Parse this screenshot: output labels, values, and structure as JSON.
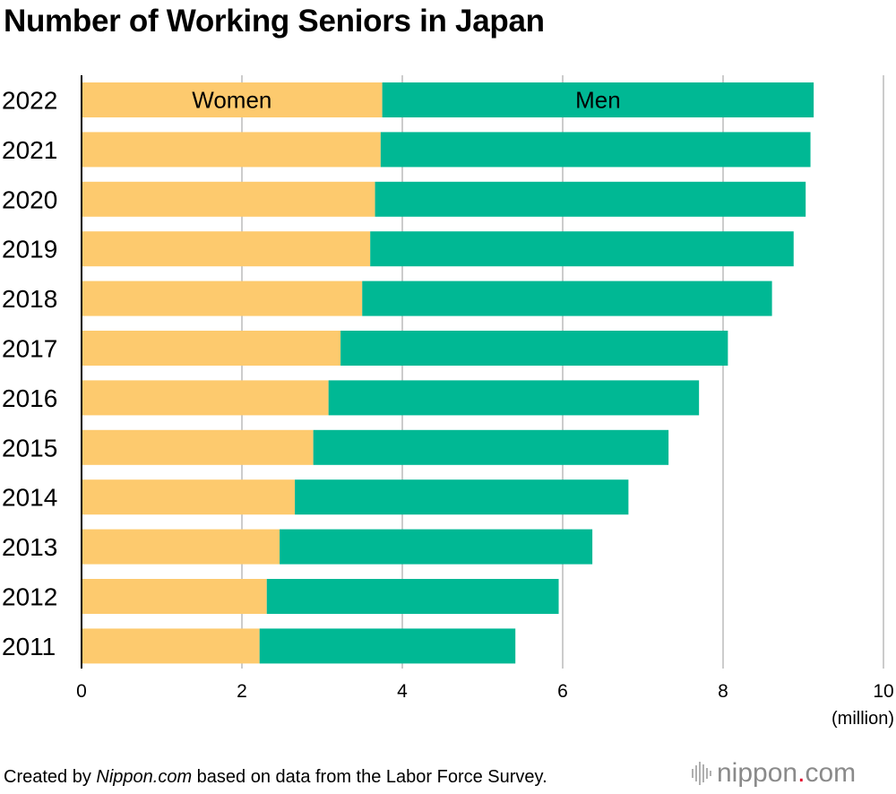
{
  "title": "Number of Working Seniors in Japan",
  "source": {
    "prefix": "Created by ",
    "site": "Nippon.com",
    "suffix": " based on data from the Labor Force Survey."
  },
  "logo": {
    "name": "nippon",
    "dot": ".",
    "tld": "com",
    "icon": "barcode-logo-icon"
  },
  "colors": {
    "women": "#FDCA6E",
    "men": "#00B894",
    "grid": "#cccccc",
    "axis": "#000000"
  },
  "chart_data": {
    "type": "bar",
    "orientation": "horizontal",
    "stacked": true,
    "title": "Number of Working Seniors in Japan",
    "xlabel": "(million)",
    "ylabel": "",
    "xlim": [
      0,
      10
    ],
    "xticks": [
      0,
      2,
      4,
      6,
      8,
      10
    ],
    "grid": true,
    "legend": "inline labels in top bar",
    "categories": [
      "2022",
      "2021",
      "2020",
      "2019",
      "2018",
      "2017",
      "2016",
      "2015",
      "2014",
      "2013",
      "2012",
      "2011"
    ],
    "series": [
      {
        "name": "Women",
        "values": [
          3.75,
          3.73,
          3.66,
          3.6,
          3.5,
          3.23,
          3.08,
          2.89,
          2.66,
          2.47,
          2.31,
          2.22
        ]
      },
      {
        "name": "Men",
        "values": [
          5.38,
          5.36,
          5.37,
          5.28,
          5.11,
          4.83,
          4.62,
          4.43,
          4.16,
          3.9,
          3.64,
          3.19
        ]
      }
    ]
  }
}
